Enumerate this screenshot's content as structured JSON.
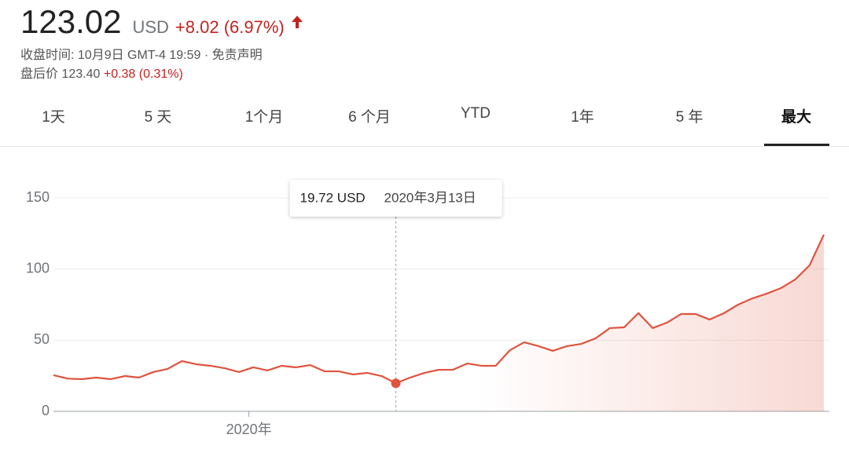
{
  "header": {
    "price": "123.02",
    "currency": "USD",
    "change": "+8.02 (6.97%)",
    "close_info": "收盘时间: 10月9日 GMT-4 19:59 · 免责声明",
    "after_hours_label": "盘后价 123.40",
    "after_hours_change": "+0.38 (0.31%)"
  },
  "tabs": [
    "1天",
    "5 天",
    "1个月",
    "6 个月",
    "YTD",
    "1年",
    "5 年",
    "最大"
  ],
  "selected_tab": 7,
  "chart_data": {
    "type": "line",
    "color": "#e0533d",
    "grid": true,
    "values": [
      25.4,
      23,
      22.6,
      23.7,
      22.6,
      24.8,
      23.7,
      27.6,
      29.8,
      35.3,
      33.1,
      32,
      30.3,
      27.6,
      30.9,
      28.7,
      32,
      30.9,
      32.5,
      28.1,
      28.1,
      25.9,
      27,
      24.8,
      19.72,
      23.7,
      27,
      29.2,
      29.2,
      33.6,
      32,
      32,
      43,
      48.5,
      45.8,
      42.5,
      45.8,
      47.4,
      51.3,
      58.5,
      59,
      69,
      58.5,
      62.3,
      68.4,
      68.4,
      64.5,
      69,
      75,
      79.4,
      82.7,
      86.6,
      92.7,
      102.6,
      124.1
    ],
    "ylim": [
      0,
      150
    ],
    "yticks": [
      0,
      50,
      100,
      150
    ],
    "xticks": [
      {
        "value": 13.7,
        "label": "2020年"
      }
    ],
    "tooltip": {
      "value": 19.72,
      "value_label": "19.72 USD",
      "date": "2020年3月13日"
    }
  }
}
